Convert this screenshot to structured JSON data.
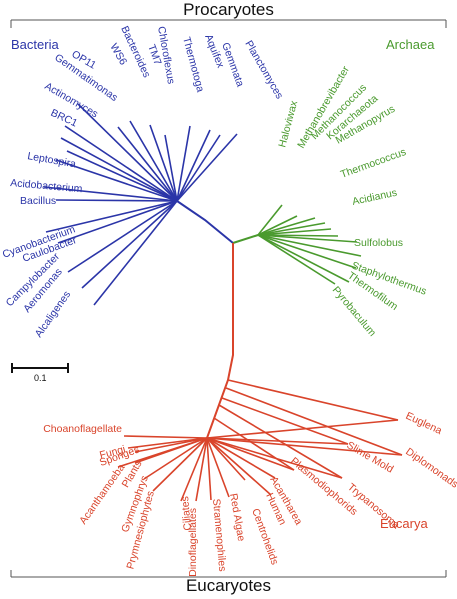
{
  "titles": {
    "top": "Procaryotes",
    "bottom": "Eucaryotes"
  },
  "domains": {
    "bacteria": "Bacteria",
    "archaea": "Archaea",
    "eucarya": "Eucarya"
  },
  "scale_bar": {
    "label": "0.1"
  },
  "colors": {
    "bacteria": "#2b35a8",
    "archaea": "#4a9a2e",
    "eucarya": "#d9442b",
    "frame": "#555555"
  },
  "bacteria_taxa": [
    "Bacteroides",
    "WS6",
    "TM7",
    "Chloroflexus",
    "Thermotoga",
    "Aquifex",
    "Gemmata",
    "Planctomyces",
    "OP11",
    "Gemmatimonas",
    "Actinomyces",
    "BRC1",
    "Leptospira",
    "Acidobacterium",
    "Bacillus",
    "Cyanobacterium",
    "Caulobacter",
    "Campylobacter",
    "Aeromonas",
    "Alcaligenes"
  ],
  "archaea_taxa": [
    "Haloviwax",
    "Methanobrevibacter",
    "Methanococcus",
    "Korarchaeota",
    "Methanopyrus",
    "Thermococcus",
    "Acidianus",
    "Sulfolobus",
    "Staphylothermus",
    "Thermofilum",
    "Pyrobaculum"
  ],
  "eucarya_taxa": [
    "Euglena",
    "Diplomonads",
    "Slime Mold",
    "Trypanosoma",
    "Plasmodiophorids",
    "Acantharea",
    "Human",
    "Centrohelids",
    "Red Algae",
    "Stramenophiles",
    "Dinoflagellates",
    "Ciliates",
    "Prymnesiophytes",
    "Gymnophrys",
    "Plants",
    "Acanthamoeba",
    "Sponges",
    "Fungi",
    "Choanoflagellate"
  ]
}
